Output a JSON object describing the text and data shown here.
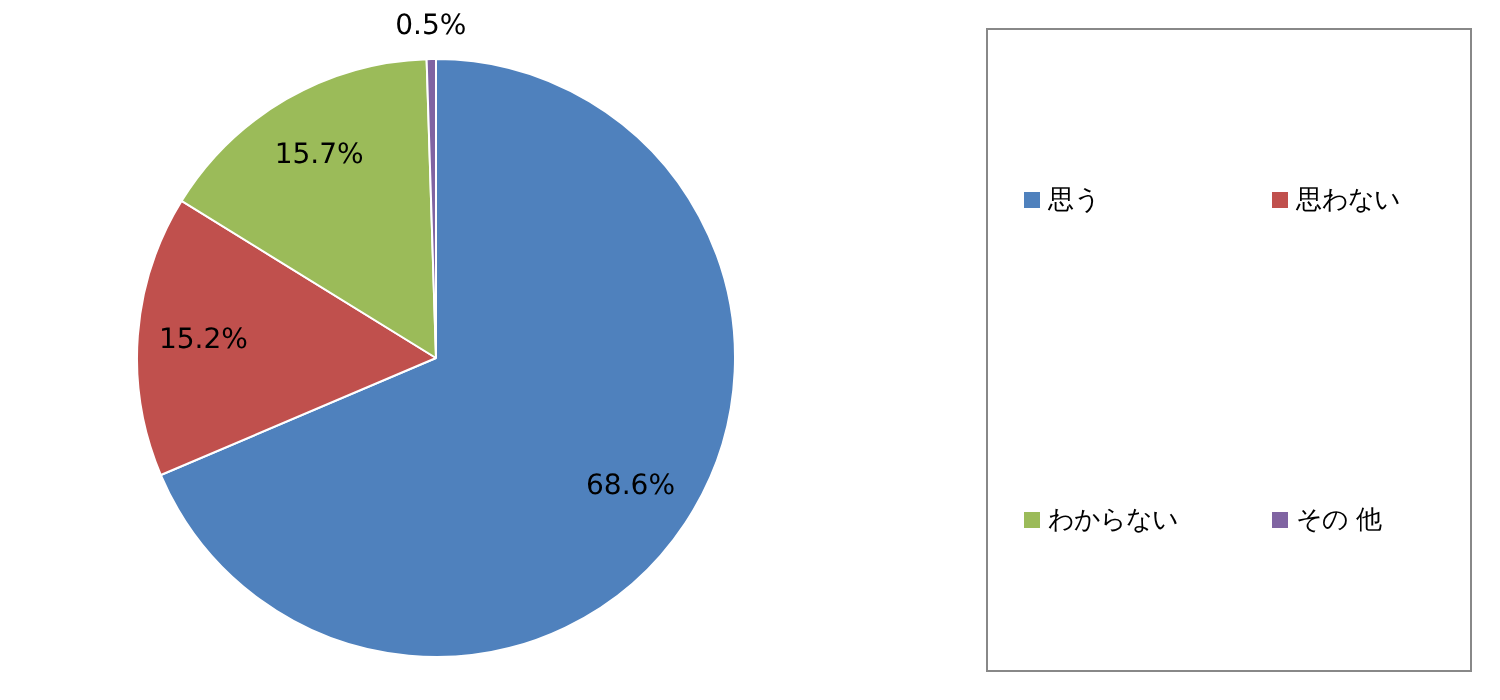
{
  "chart_data": {
    "type": "pie",
    "categories": [
      "思う",
      "思わない",
      "わからない",
      "その 他"
    ],
    "values": [
      68.6,
      15.2,
      15.7,
      0.5
    ],
    "colors": [
      "#4f81bd",
      "#c0504d",
      "#9bbb59",
      "#8064a2"
    ],
    "value_labels": [
      "68.6%",
      "15.2%",
      "15.7%",
      "0.5%"
    ],
    "legend": "right"
  }
}
